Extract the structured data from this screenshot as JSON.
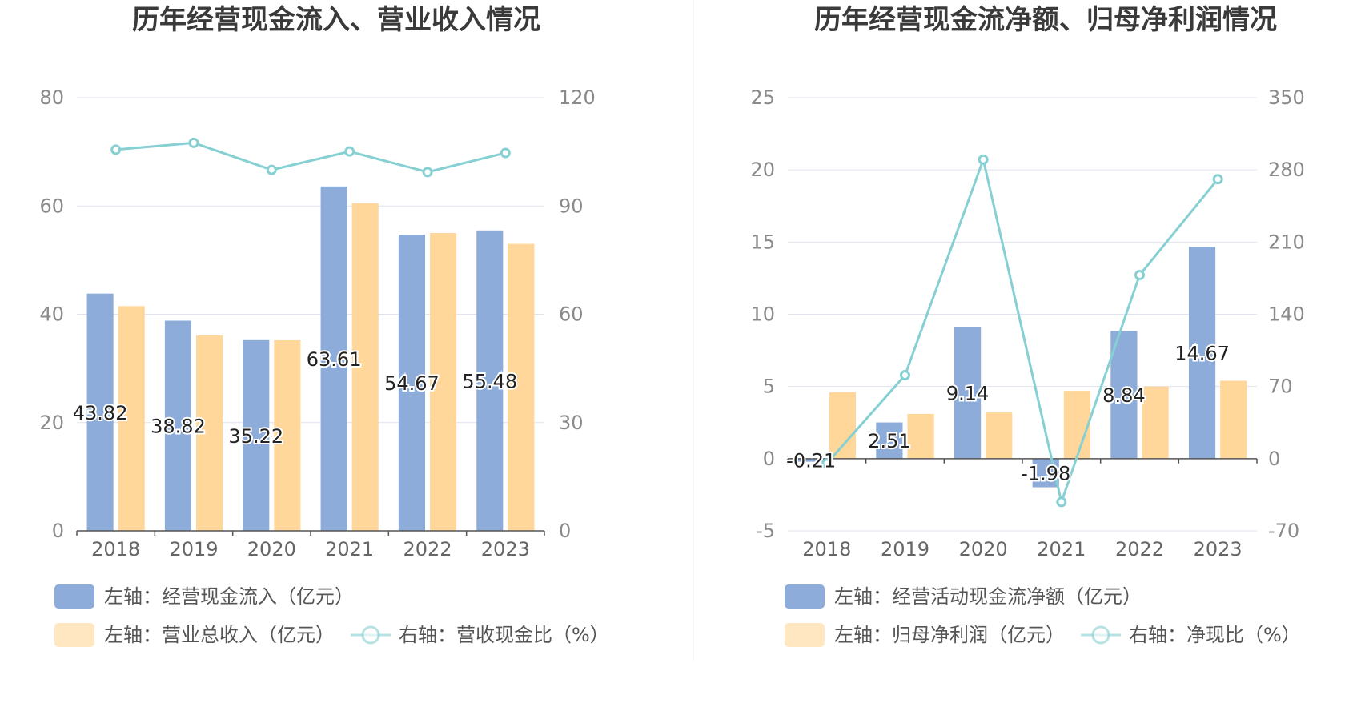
{
  "colors": {
    "bar_primary": "#8eacd9",
    "bar_secondary": "#ffd79a",
    "line": "#86d0d3",
    "grid": "#dfe3ee",
    "axis": "#555555",
    "divider": "#eeeeee"
  },
  "chart_data": [
    {
      "type": "bar",
      "title": "历年经营现金流入、营业收入情况",
      "categories": [
        "2018",
        "2019",
        "2020",
        "2021",
        "2022",
        "2023"
      ],
      "left_axis": {
        "ylim": [
          0,
          80
        ],
        "ticks": [
          "0",
          "20",
          "40",
          "60",
          "80"
        ]
      },
      "right_axis": {
        "ylim": [
          0,
          120
        ],
        "ticks": [
          "0",
          "30",
          "60",
          "90",
          "120"
        ]
      },
      "grid": true,
      "legend_position": "bottom",
      "series": [
        {
          "name": "左轴：经营现金流入（亿元）",
          "kind": "bar",
          "axis": "left",
          "values": [
            43.82,
            38.82,
            35.22,
            63.61,
            54.67,
            55.48
          ],
          "labels": [
            "43.82",
            "38.82",
            "35.22",
            "63.61",
            "54.67",
            "55.48"
          ]
        },
        {
          "name": "左轴：营业总收入（亿元）",
          "kind": "bar",
          "axis": "left",
          "values": [
            41.5,
            36.1,
            35.2,
            60.5,
            55.0,
            53.0
          ]
        },
        {
          "name": "右轴：营收现金比（%）",
          "kind": "line",
          "axis": "right",
          "values": [
            105.6,
            107.5,
            100.0,
            105.1,
            99.4,
            104.7
          ]
        }
      ]
    },
    {
      "type": "bar",
      "title": "历年经营现金流净额、归母净利润情况",
      "categories": [
        "2018",
        "2019",
        "2020",
        "2021",
        "2022",
        "2023"
      ],
      "left_axis": {
        "ylim": [
          -5,
          25
        ],
        "ticks": [
          "-5",
          "0",
          "5",
          "10",
          "15",
          "20",
          "25"
        ]
      },
      "right_axis": {
        "ylim": [
          -70,
          350
        ],
        "ticks": [
          "-70",
          "0",
          "70",
          "140",
          "210",
          "280",
          "350"
        ]
      },
      "grid": true,
      "legend_position": "bottom",
      "series": [
        {
          "name": "左轴：经营活动现金流净额（亿元）",
          "kind": "bar",
          "axis": "left",
          "values": [
            -0.21,
            2.51,
            9.14,
            -1.98,
            8.84,
            14.67
          ],
          "labels": [
            "-0.21",
            "2.51",
            "9.14",
            "-1.98",
            "8.84",
            "14.67"
          ]
        },
        {
          "name": "左轴：归母净利润（亿元）",
          "kind": "bar",
          "axis": "left",
          "values": [
            4.6,
            3.1,
            3.2,
            4.7,
            5.0,
            5.4
          ]
        },
        {
          "name": "右轴：净现比（%）",
          "kind": "line",
          "axis": "right",
          "values": [
            -4.6,
            81.0,
            290.0,
            -42.0,
            178.0,
            271.0
          ]
        }
      ]
    }
  ]
}
